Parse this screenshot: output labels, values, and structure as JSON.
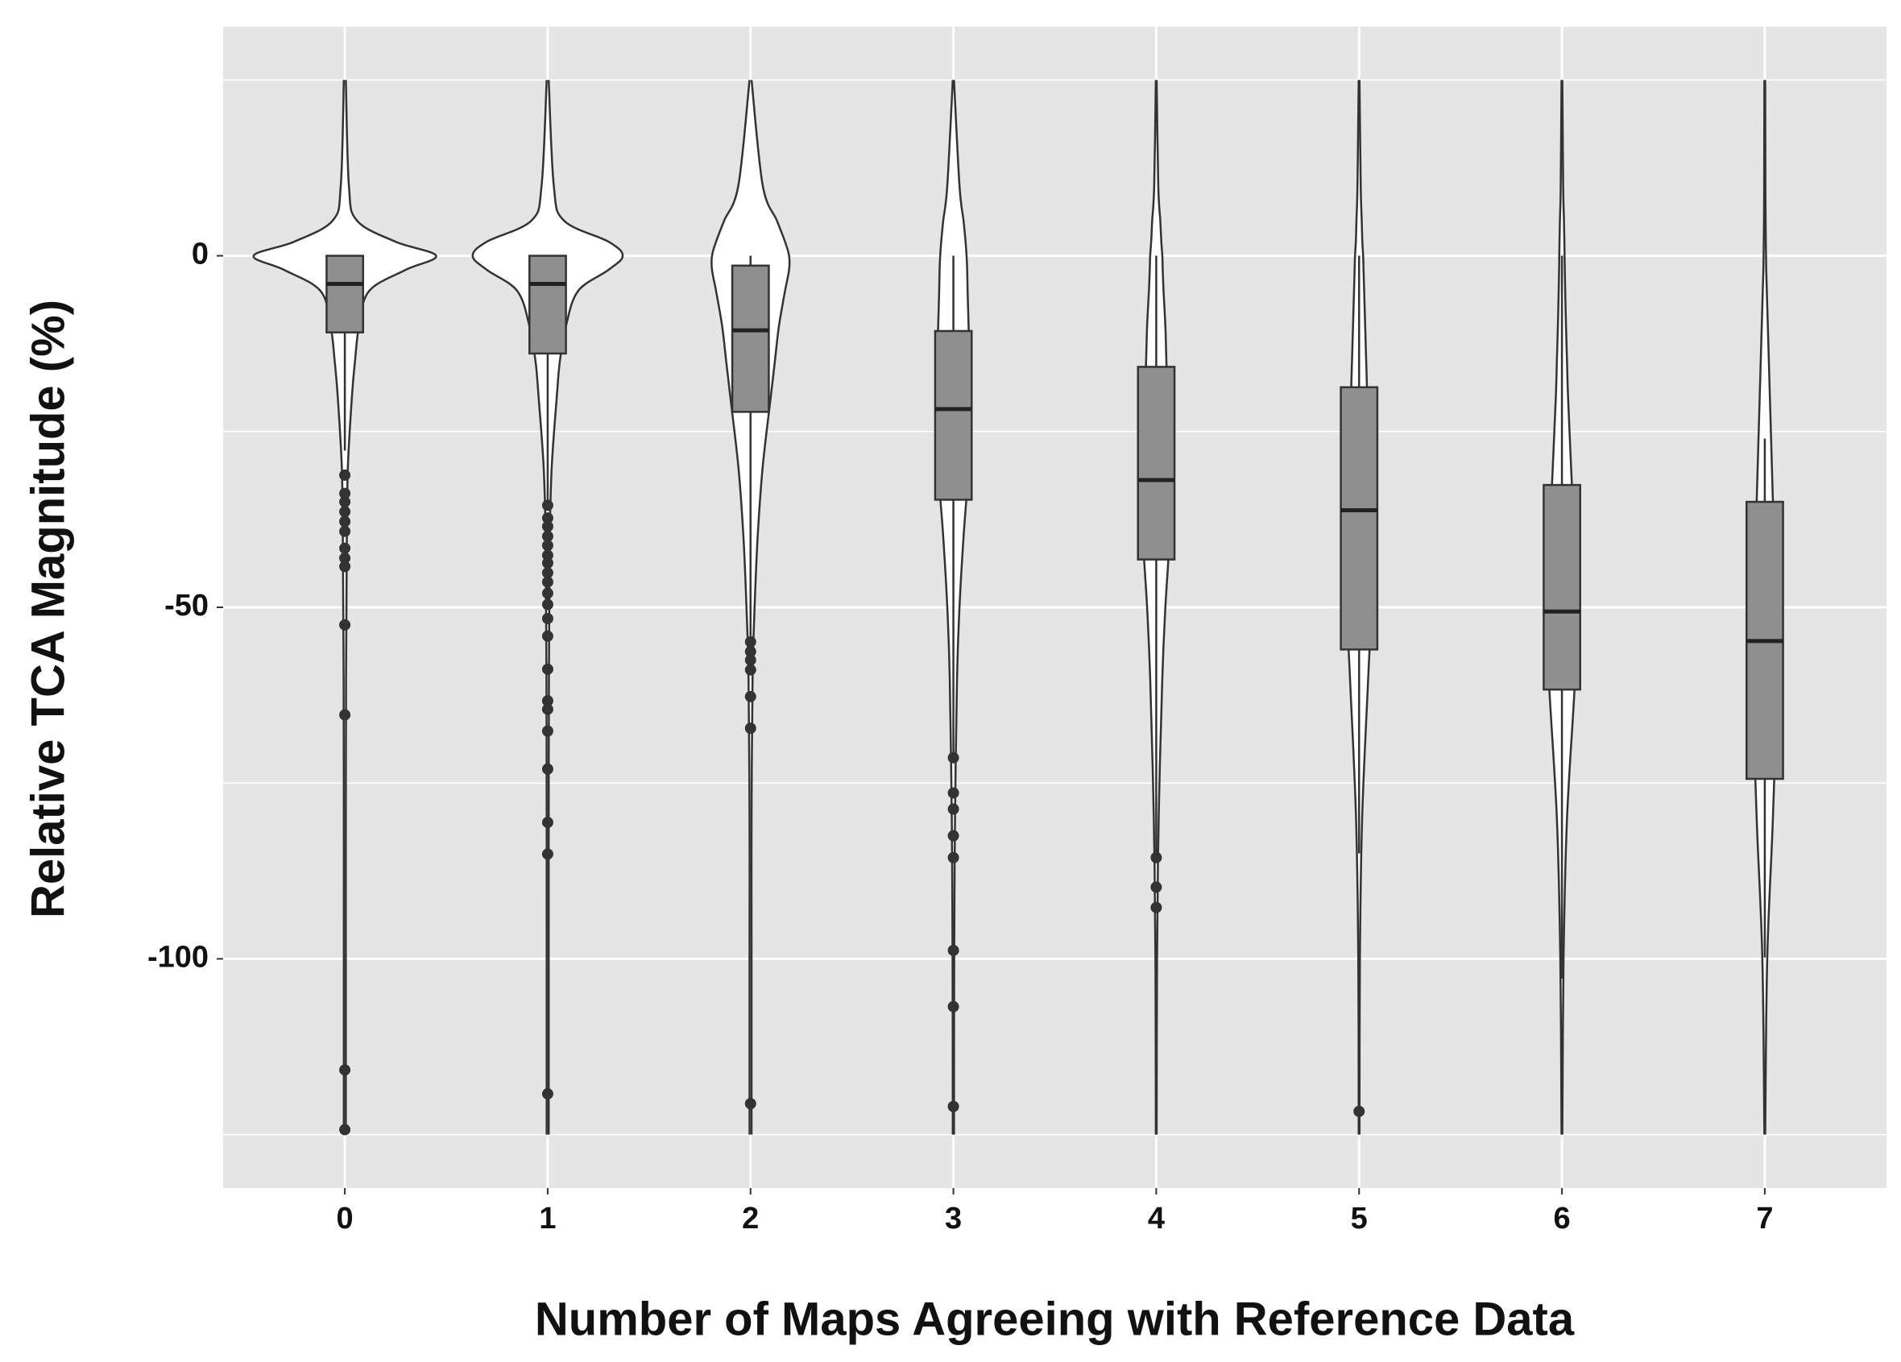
{
  "chart_data": {
    "type": "violin",
    "x_label": "Number of Maps Agreeing with Reference Data",
    "y_label": "Relative TCA Magnitude (%)",
    "categories": [
      "0",
      "1",
      "2",
      "3",
      "4",
      "5",
      "6",
      "7"
    ],
    "xlim": [
      -0.6,
      7.6
    ],
    "ylim": [
      -132.6,
      32.6
    ],
    "yticks": [
      0,
      -50,
      -100
    ],
    "minor_yticks": [
      25,
      -25,
      -75,
      -125
    ],
    "grid": true,
    "background_color": "#e5e5e5",
    "violin_color": "#ffffff",
    "box_color": "#8f8f8f",
    "line_color": "#333333",
    "density_y": [
      25,
      10,
      5,
      2,
      0,
      -2,
      -5,
      -10,
      -15,
      -20,
      -30,
      -40,
      -50,
      -60,
      -80,
      -100,
      -125
    ],
    "groups": [
      {
        "violin_width": [
          0.005,
          0.02,
          0.06,
          0.25,
          0.45,
          0.3,
          0.12,
          0.07,
          0.05,
          0.035,
          0.015,
          0.01,
          0.008,
          0.006,
          0.005,
          0.005,
          0.005
        ],
        "box": {
          "whisker_low": -27.7,
          "q1": -10.9,
          "median": -4,
          "q3": 0,
          "whisker_high": 0
        },
        "outliers": [
          -31.2,
          -33.8,
          -35,
          -36.4,
          -37.8,
          -39.2,
          -41.6,
          -43,
          -44.2,
          -52.5,
          -65.3,
          -115.8,
          -124.3
        ]
      },
      {
        "violin_width": [
          0.005,
          0.03,
          0.08,
          0.3,
          0.37,
          0.3,
          0.15,
          0.09,
          0.06,
          0.045,
          0.02,
          0.01,
          0.008,
          0.006,
          0.005,
          0.005,
          0.005
        ],
        "box": {
          "whisker_low": -35.2,
          "q1": -13.9,
          "median": -4,
          "q3": 0,
          "whisker_high": 0
        },
        "outliers": [
          -35.5,
          -37.3,
          -38.5,
          -39.9,
          -41.2,
          -42.6,
          -43.7,
          -45.1,
          -46.4,
          -48,
          -49.6,
          -51.6,
          -54.1,
          -58.8,
          -63.3,
          -64.5,
          -67.6,
          -73,
          -80.6,
          -85.1,
          -119.2
        ]
      },
      {
        "violin_width": [
          0.005,
          0.06,
          0.13,
          0.17,
          0.19,
          0.19,
          0.17,
          0.14,
          0.12,
          0.1,
          0.06,
          0.035,
          0.02,
          0.01,
          0.005,
          0.005,
          0.005
        ],
        "box": {
          "whisker_low": -54.1,
          "q1": -22.2,
          "median": -10.6,
          "q3": -1.4,
          "whisker_high": 0
        },
        "outliers": [
          -54.9,
          -56.3,
          -57.5,
          -58.9,
          -62.7,
          -67.2,
          -120.6
        ]
      },
      {
        "violin_width": [
          0.003,
          0.03,
          0.05,
          0.06,
          0.065,
          0.068,
          0.07,
          0.075,
          0.08,
          0.085,
          0.075,
          0.05,
          0.03,
          0.018,
          0.008,
          0.004,
          0.003
        ],
        "box": {
          "whisker_low": -71,
          "q1": -34.7,
          "median": -21.8,
          "q3": -10.7,
          "whisker_high": 0
        },
        "outliers": [
          -71.4,
          -76.4,
          -78.7,
          -82.5,
          -85.6,
          -98.8,
          -106.8,
          -121
        ]
      },
      {
        "violin_width": [
          0.002,
          0.01,
          0.02,
          0.025,
          0.03,
          0.032,
          0.036,
          0.045,
          0.05,
          0.055,
          0.065,
          0.065,
          0.045,
          0.03,
          0.012,
          0.004,
          0.002
        ],
        "box": {
          "whisker_low": -85,
          "q1": -43.2,
          "median": -31.9,
          "q3": -15.8,
          "whisker_high": 0
        },
        "outliers": [
          -85.6,
          -89.8,
          -92.7
        ]
      },
      {
        "violin_width": [
          0.002,
          0.008,
          0.013,
          0.016,
          0.02,
          0.022,
          0.025,
          0.03,
          0.035,
          0.04,
          0.048,
          0.055,
          0.06,
          0.045,
          0.015,
          0.004,
          0.002
        ],
        "box": {
          "whisker_low": -85,
          "q1": -56,
          "median": -36.2,
          "q3": -18.7,
          "whisker_high": 0
        },
        "outliers": [
          -121.7
        ]
      },
      {
        "violin_width": [
          0.002,
          0.006,
          0.01,
          0.012,
          0.013,
          0.014,
          0.016,
          0.02,
          0.025,
          0.03,
          0.045,
          0.06,
          0.07,
          0.065,
          0.025,
          0.008,
          0.002
        ],
        "box": {
          "whisker_low": -102.8,
          "q1": -61.7,
          "median": -50.6,
          "q3": -32.6,
          "whisker_high": 0
        },
        "outliers": []
      },
      {
        "violin_width": [
          0.002,
          0.003,
          0.004,
          0.005,
          0.006,
          0.007,
          0.01,
          0.015,
          0.02,
          0.025,
          0.035,
          0.045,
          0.055,
          0.06,
          0.04,
          0.012,
          0.002
        ],
        "box": {
          "whisker_low": -99.8,
          "q1": -74.4,
          "median": -54.8,
          "q3": -35,
          "whisker_high": -26
        },
        "outliers": []
      }
    ]
  }
}
